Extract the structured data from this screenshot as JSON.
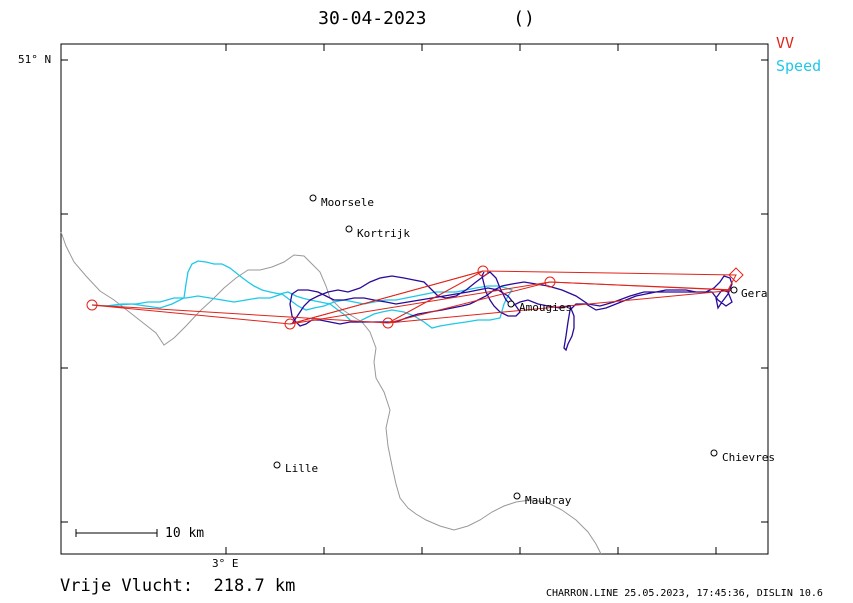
{
  "title": {
    "date": "30-04-2023",
    "pilot": "()"
  },
  "legend": [
    {
      "label": "VV",
      "color": "#e0241a"
    },
    {
      "label": "Speed",
      "color": "#1fc8e8"
    }
  ],
  "axes": {
    "lat_label": "51° N",
    "lon_label": "3° E"
  },
  "scale_bar": {
    "label": "10 km"
  },
  "places": [
    {
      "name": "Moorsele",
      "key": "moorsele"
    },
    {
      "name": "Kortrijk",
      "key": "kortrijk"
    },
    {
      "name": "Amougies",
      "key": "amougies"
    },
    {
      "name": "Gera",
      "key": "gera"
    },
    {
      "name": "Lille",
      "key": "lille"
    },
    {
      "name": "Chievres",
      "key": "chievres"
    },
    {
      "name": "Maubray",
      "key": "maubray"
    }
  ],
  "footer": {
    "distance_text": "Vrije Vlucht:  218.7 km",
    "credit": "CHARRON.LINE 25.05.2023, 17:45:36, DISLIN 10.6"
  },
  "colors": {
    "task": "#e0241a",
    "speed_track": "#1fc8e8",
    "track": "#2a0a9a",
    "border": "#999999"
  }
}
